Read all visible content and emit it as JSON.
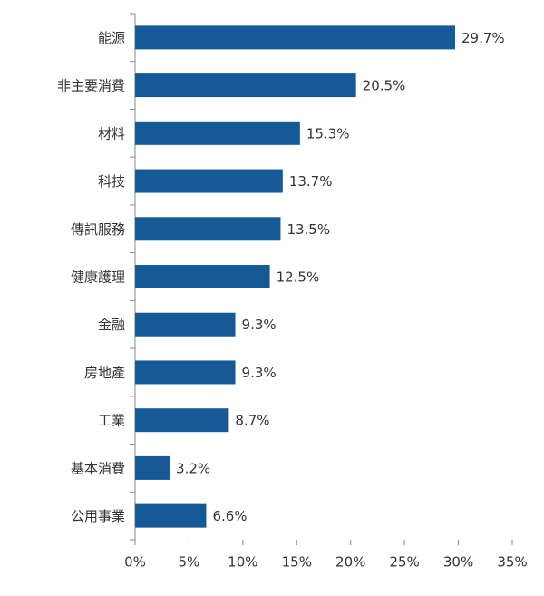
{
  "chart_data": {
    "type": "barh",
    "categories": [
      "能源",
      "非主要消費",
      "材料",
      "科技",
      "傳訊服務",
      "健康護理",
      "金融",
      "房地產",
      "工業",
      "基本消費",
      "公用事業"
    ],
    "values": [
      29.7,
      20.5,
      15.3,
      13.7,
      13.5,
      12.5,
      9.3,
      9.3,
      8.7,
      3.2,
      6.6
    ],
    "value_labels": [
      "29.7%",
      "20.5%",
      "15.3%",
      "13.7%",
      "13.5%",
      "12.5%",
      "9.3%",
      "9.3%",
      "8.7%",
      "3.2%",
      "6.6%"
    ],
    "color": "#155a96",
    "xlim": [
      0,
      35
    ],
    "xticks": [
      {
        "value": 0,
        "label": "0%"
      },
      {
        "value": 5,
        "label": "5%"
      },
      {
        "value": 10,
        "label": "10%"
      },
      {
        "value": 15,
        "label": "15%"
      },
      {
        "value": 20,
        "label": "20%"
      },
      {
        "value": 25,
        "label": "25%"
      },
      {
        "value": 30,
        "label": "30%"
      },
      {
        "value": 35,
        "label": "35%"
      }
    ],
    "grid": false
  }
}
